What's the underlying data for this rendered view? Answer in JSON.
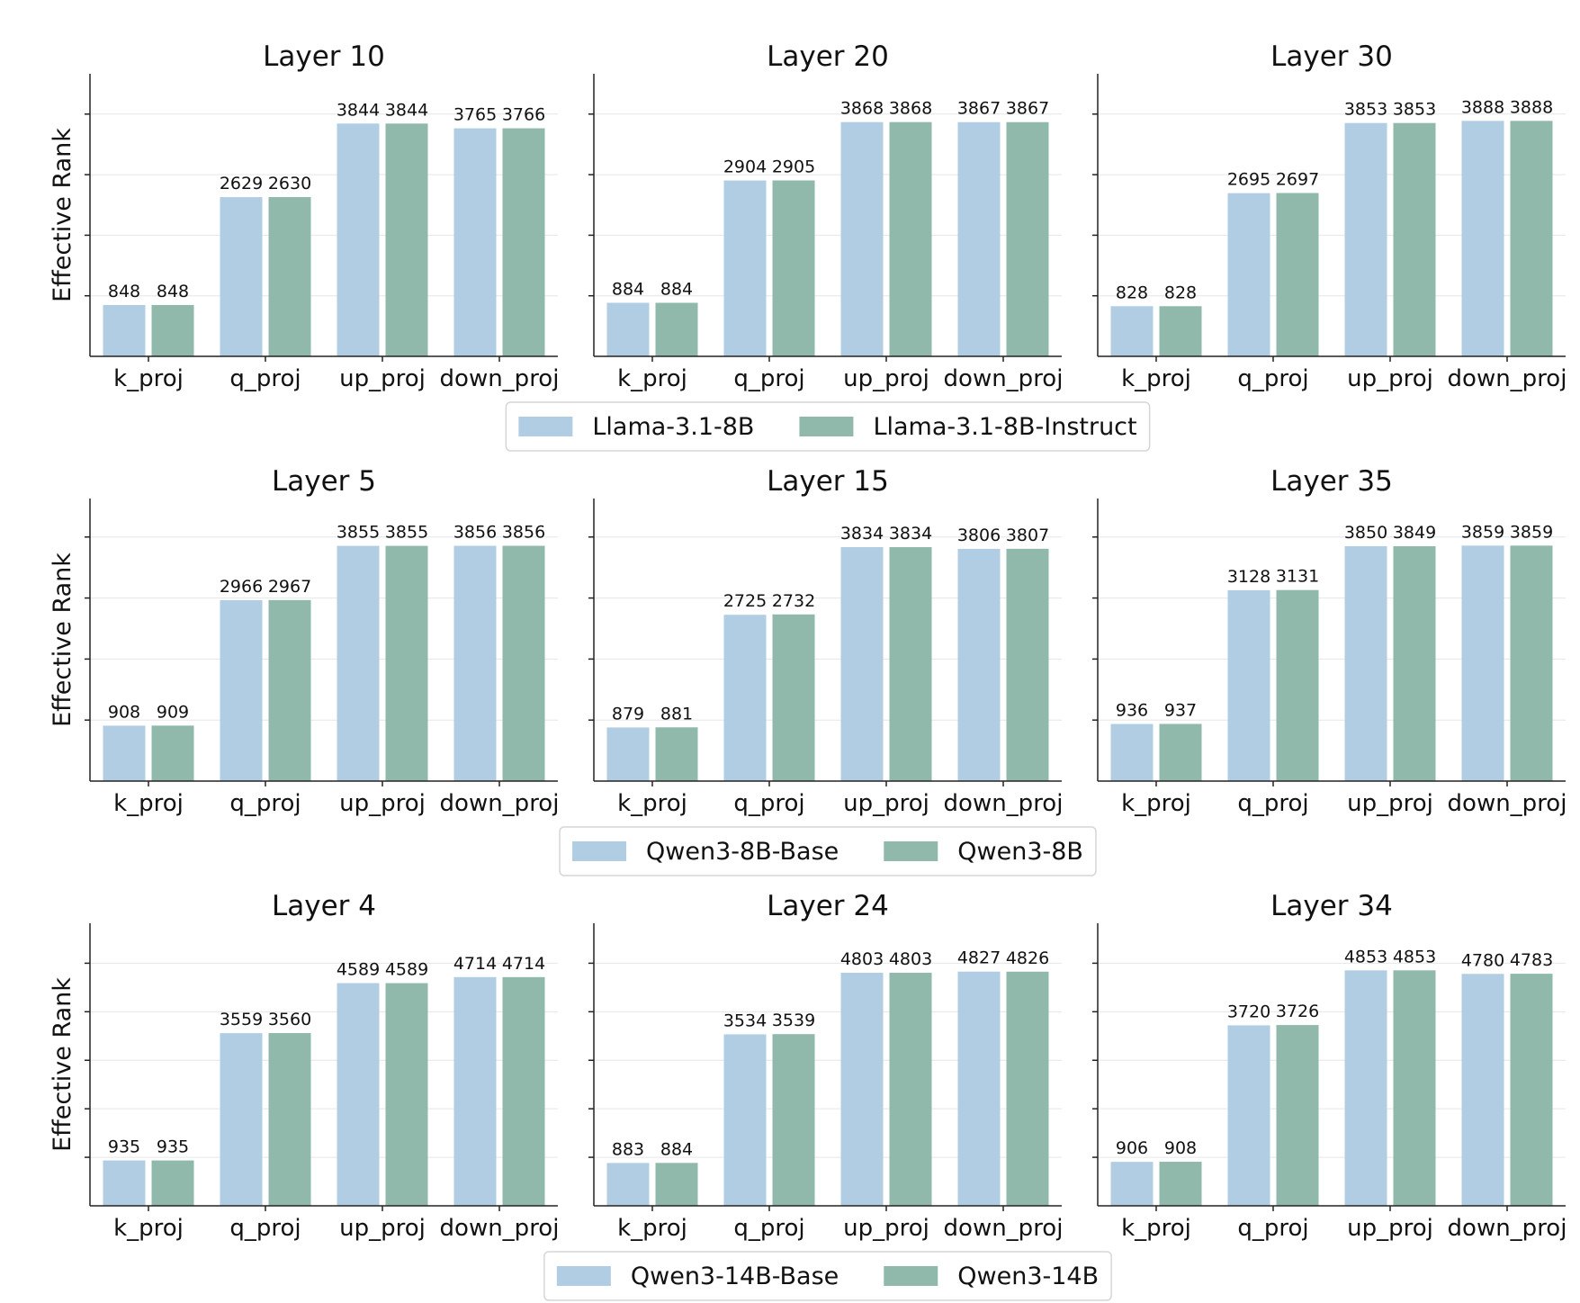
{
  "colors": {
    "base": "#b1cde3",
    "instruct": "#90b9ac",
    "axis": "#222222",
    "grid": "#e6e6e6"
  },
  "chart_data": [
    {
      "type": "bar",
      "ylabel": "Effective Rank",
      "categories": [
        "k_proj",
        "q_proj",
        "up_proj",
        "down_proj"
      ],
      "legend": [
        "Llama-3.1-8B",
        "Llama-3.1-8B-Instruct"
      ],
      "panels": [
        {
          "title": "Layer 10",
          "series": [
            {
              "name": "Llama-3.1-8B",
              "values": [
                848,
                2629,
                3844,
                3765
              ]
            },
            {
              "name": "Llama-3.1-8B-Instruct",
              "values": [
                848,
                2630,
                3844,
                3766
              ]
            }
          ]
        },
        {
          "title": "Layer 20",
          "series": [
            {
              "name": "Llama-3.1-8B",
              "values": [
                884,
                2904,
                3868,
                3867
              ]
            },
            {
              "name": "Llama-3.1-8B-Instruct",
              "values": [
                884,
                2905,
                3868,
                3867
              ]
            }
          ]
        },
        {
          "title": "Layer 30",
          "series": [
            {
              "name": "Llama-3.1-8B",
              "values": [
                828,
                2695,
                3853,
                3888
              ]
            },
            {
              "name": "Llama-3.1-8B-Instruct",
              "values": [
                828,
                2697,
                3853,
                3888
              ]
            }
          ]
        }
      ]
    },
    {
      "type": "bar",
      "ylabel": "Effective Rank",
      "categories": [
        "k_proj",
        "q_proj",
        "up_proj",
        "down_proj"
      ],
      "legend": [
        "Qwen3-8B-Base",
        "Qwen3-8B"
      ],
      "panels": [
        {
          "title": "Layer 5",
          "series": [
            {
              "name": "Qwen3-8B-Base",
              "values": [
                908,
                2966,
                3855,
                3856
              ]
            },
            {
              "name": "Qwen3-8B",
              "values": [
                909,
                2967,
                3855,
                3856
              ]
            }
          ]
        },
        {
          "title": "Layer 15",
          "series": [
            {
              "name": "Qwen3-8B-Base",
              "values": [
                879,
                2725,
                3834,
                3806
              ]
            },
            {
              "name": "Qwen3-8B",
              "values": [
                881,
                2732,
                3834,
                3807
              ]
            }
          ]
        },
        {
          "title": "Layer 35",
          "series": [
            {
              "name": "Qwen3-8B-Base",
              "values": [
                936,
                3128,
                3850,
                3859
              ]
            },
            {
              "name": "Qwen3-8B",
              "values": [
                937,
                3131,
                3849,
                3859
              ]
            }
          ]
        }
      ]
    },
    {
      "type": "bar",
      "ylabel": "Effective Rank",
      "categories": [
        "k_proj",
        "q_proj",
        "up_proj",
        "down_proj"
      ],
      "legend": [
        "Qwen3-14B-Base",
        "Qwen3-14B"
      ],
      "panels": [
        {
          "title": "Layer 4",
          "series": [
            {
              "name": "Qwen3-14B-Base",
              "values": [
                935,
                3559,
                4589,
                4714
              ]
            },
            {
              "name": "Qwen3-14B",
              "values": [
                935,
                3560,
                4589,
                4714
              ]
            }
          ]
        },
        {
          "title": "Layer 24",
          "series": [
            {
              "name": "Qwen3-14B-Base",
              "values": [
                883,
                3534,
                4803,
                4827
              ]
            },
            {
              "name": "Qwen3-14B",
              "values": [
                884,
                3539,
                4803,
                4826
              ]
            }
          ]
        },
        {
          "title": "Layer 34",
          "series": [
            {
              "name": "Qwen3-14B-Base",
              "values": [
                906,
                3720,
                4853,
                4780
              ]
            },
            {
              "name": "Qwen3-14B",
              "values": [
                908,
                3726,
                4853,
                4783
              ]
            }
          ]
        }
      ]
    }
  ]
}
